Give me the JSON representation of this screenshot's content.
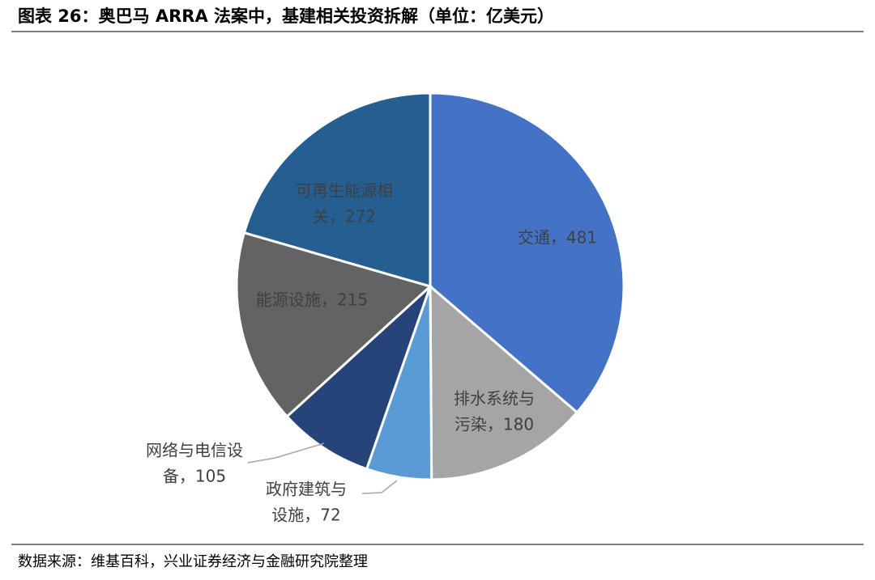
{
  "chart_data": {
    "type": "pie",
    "title": "图表 26：奥巴马 ARRA 法案中，基建相关投资拆解（单位：亿美元）",
    "source": "数据来源：维基百科，兴业证券经济与金融研究院整理",
    "values": [
      481,
      180,
      72,
      105,
      215,
      272
    ],
    "labels": [
      [
        "交通，481"
      ],
      [
        "排水系统与",
        "污染，180"
      ],
      [
        "政府建筑与",
        "设施，72"
      ],
      [
        "网络与电信设",
        "备，105"
      ],
      [
        "能源设施，215"
      ],
      [
        "可再生能源相",
        "关，272"
      ]
    ],
    "colors": [
      "#4472c4",
      "#a5a5a5",
      "#5b9bd5",
      "#264478",
      "#636363",
      "#255e91"
    ]
  }
}
